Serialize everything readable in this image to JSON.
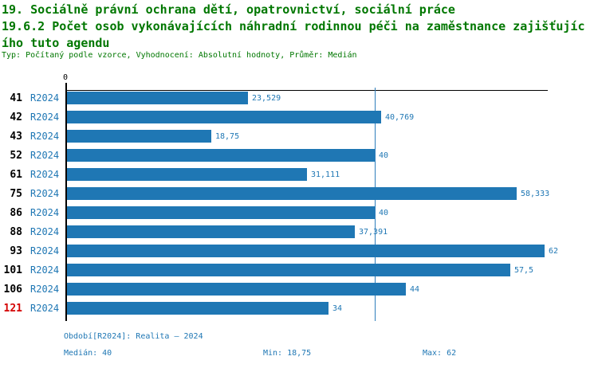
{
  "header": {
    "title_line1": "19. Sociálně právní ochrana dětí, opatrovnictví, sociální práce",
    "title_line2": "19.6.2 Počet osob vykonávajících náhradní rodinnou péči na zaměstnance zajišťujíc",
    "title_line3": "ího tuto agendu",
    "meta": "Typ: Počítaný podle vzorce, Vyhodnocení: Absolutní hodnoty, Průměr: Medián"
  },
  "chart_data": {
    "type": "bar",
    "orientation": "horizontal",
    "title": "19.6.2 Počet osob vykonávajících náhradní rodinnou péči na zaměstnance zajišťujícího tuto agendu",
    "series_label": "R2024",
    "axis_origin_label": "0",
    "categories": [
      "41",
      "42",
      "43",
      "52",
      "61",
      "75",
      "86",
      "88",
      "93",
      "101",
      "106",
      "121"
    ],
    "values": [
      23.529,
      40.769,
      18.75,
      40,
      31.111,
      58.333,
      40,
      37.391,
      62,
      57.5,
      44,
      34
    ],
    "value_labels": [
      "23,529",
      "40,769",
      "18,75",
      "40",
      "31,111",
      "58,333",
      "40",
      "37,391",
      "62",
      "57,5",
      "44",
      "34"
    ],
    "highlighted_category": "121",
    "median_line_value": 40,
    "xlim": [
      0,
      62
    ],
    "grid": false,
    "legend_position": "none",
    "bar_color": "#1f77b4",
    "median_line_color": "#2e7ebc",
    "series_label_color": "#1f77b4",
    "value_label_color": "#1f77b4",
    "category_color": "#000000",
    "highlight_color": "#d40000",
    "title_color": "#007700",
    "footer_color": "#1f77b4"
  },
  "footer": {
    "period": "Období[R2024]: Realita – 2024",
    "median": "Medián: 40",
    "min": "Min: 18,75",
    "max": "Max: 62"
  }
}
